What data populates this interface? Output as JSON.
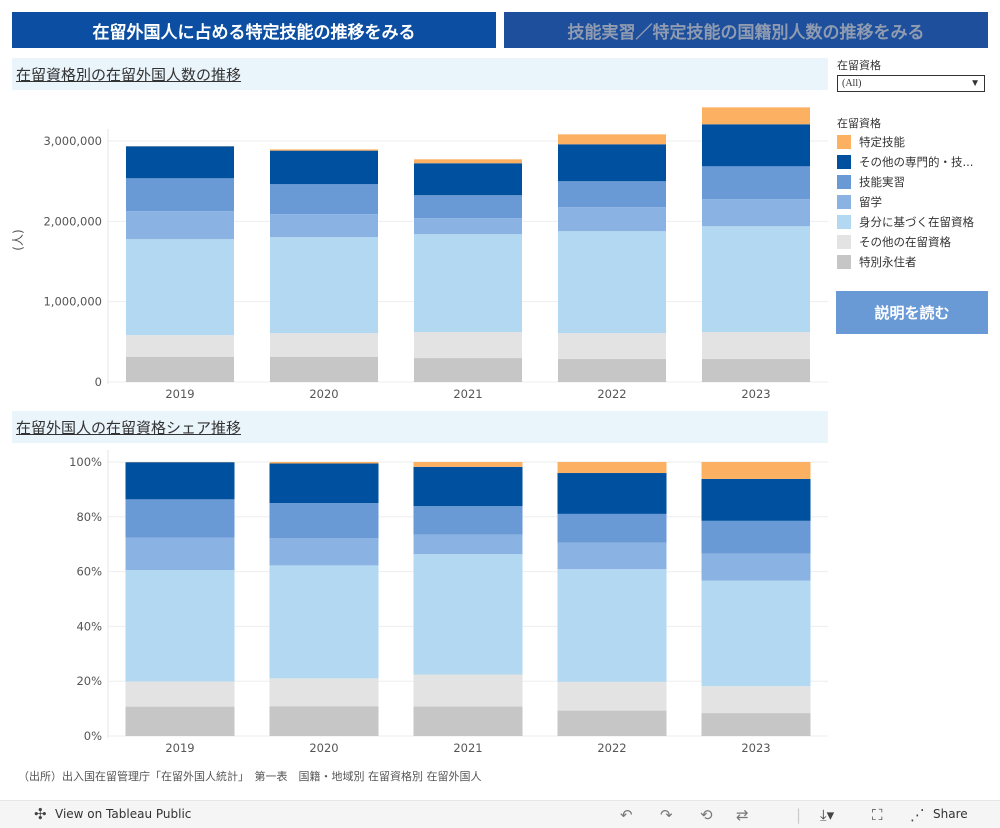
{
  "header": {
    "btn_left": "在留外国人に占める特定技能の推移をみる",
    "btn_right": "技能実習／特定技能の国籍別人数の推移をみる"
  },
  "sections": {
    "top_title": "在留資格別の在留外国人数の推移",
    "bottom_title": "在留外国人の在留資格シェア推移"
  },
  "filter": {
    "label": "在留資格",
    "value": "(All)"
  },
  "legend": {
    "title": "在留資格",
    "items": [
      {
        "label": "特定技能",
        "color": "#fbb062"
      },
      {
        "label": "その他の専門的・技...",
        "color": "#0050a0"
      },
      {
        "label": "技能実習",
        "color": "#6a9ad6"
      },
      {
        "label": "留学",
        "color": "#8ab3e4"
      },
      {
        "label": "身分に基づく在留資格",
        "color": "#b3d8f1"
      },
      {
        "label": "その他の在留資格",
        "color": "#e3e3e3"
      },
      {
        "label": "特別永住者",
        "color": "#c6c6c6"
      }
    ]
  },
  "explain_button": "説明を読む",
  "source": "（出所）出入国在留管理庁「在留外国人統計」　第一表　国籍・地域別 在留資格別 在留外国人",
  "toolbar": {
    "view_label": "View on Tableau Public",
    "share_label": "Share"
  },
  "chart_data": [
    {
      "type": "bar",
      "stacked": true,
      "title": "在留資格別の在留外国人数の推移",
      "ylabel": "(人)",
      "ylim": [
        0,
        3500000
      ],
      "yticks": [
        0,
        1000000,
        2000000,
        3000000
      ],
      "ytick_labels": [
        "0",
        "1,000,000",
        "2,000,000",
        "3,000,000"
      ],
      "categories": [
        "2019",
        "2020",
        "2021",
        "2022",
        "2023"
      ],
      "series": [
        {
          "name": "特別永住者",
          "values": [
            315000,
            315000,
            298000,
            286000,
            286000
          ]
        },
        {
          "name": "その他の在留資格",
          "values": [
            269000,
            294000,
            324000,
            323000,
            336000
          ]
        },
        {
          "name": "身分に基づく在留資格",
          "values": [
            1194000,
            1194000,
            1218000,
            1268000,
            1317000
          ]
        },
        {
          "name": "留学",
          "values": [
            348000,
            286000,
            199000,
            299000,
            336000
          ]
        },
        {
          "name": "技能実習",
          "values": [
            410000,
            373000,
            286000,
            323000,
            410000
          ]
        },
        {
          "name": "その他の専門的・技...",
          "values": [
            398000,
            418000,
            398000,
            460000,
            523000
          ]
        },
        {
          "name": "特定技能",
          "values": [
            2000,
            16000,
            49000,
            124000,
            211000
          ]
        }
      ]
    },
    {
      "type": "bar",
      "stacked": true,
      "normalized": true,
      "title": "在留外国人の在留資格シェア推移",
      "ylim": [
        0,
        100
      ],
      "yticks": [
        0,
        20,
        40,
        60,
        80,
        100
      ],
      "ytick_labels": [
        "0%",
        "20%",
        "40%",
        "60%",
        "80%",
        "100%"
      ],
      "categories": [
        "2019",
        "2020",
        "2021",
        "2022",
        "2023"
      ],
      "note": "shares derived from the same series as chart 1"
    }
  ]
}
